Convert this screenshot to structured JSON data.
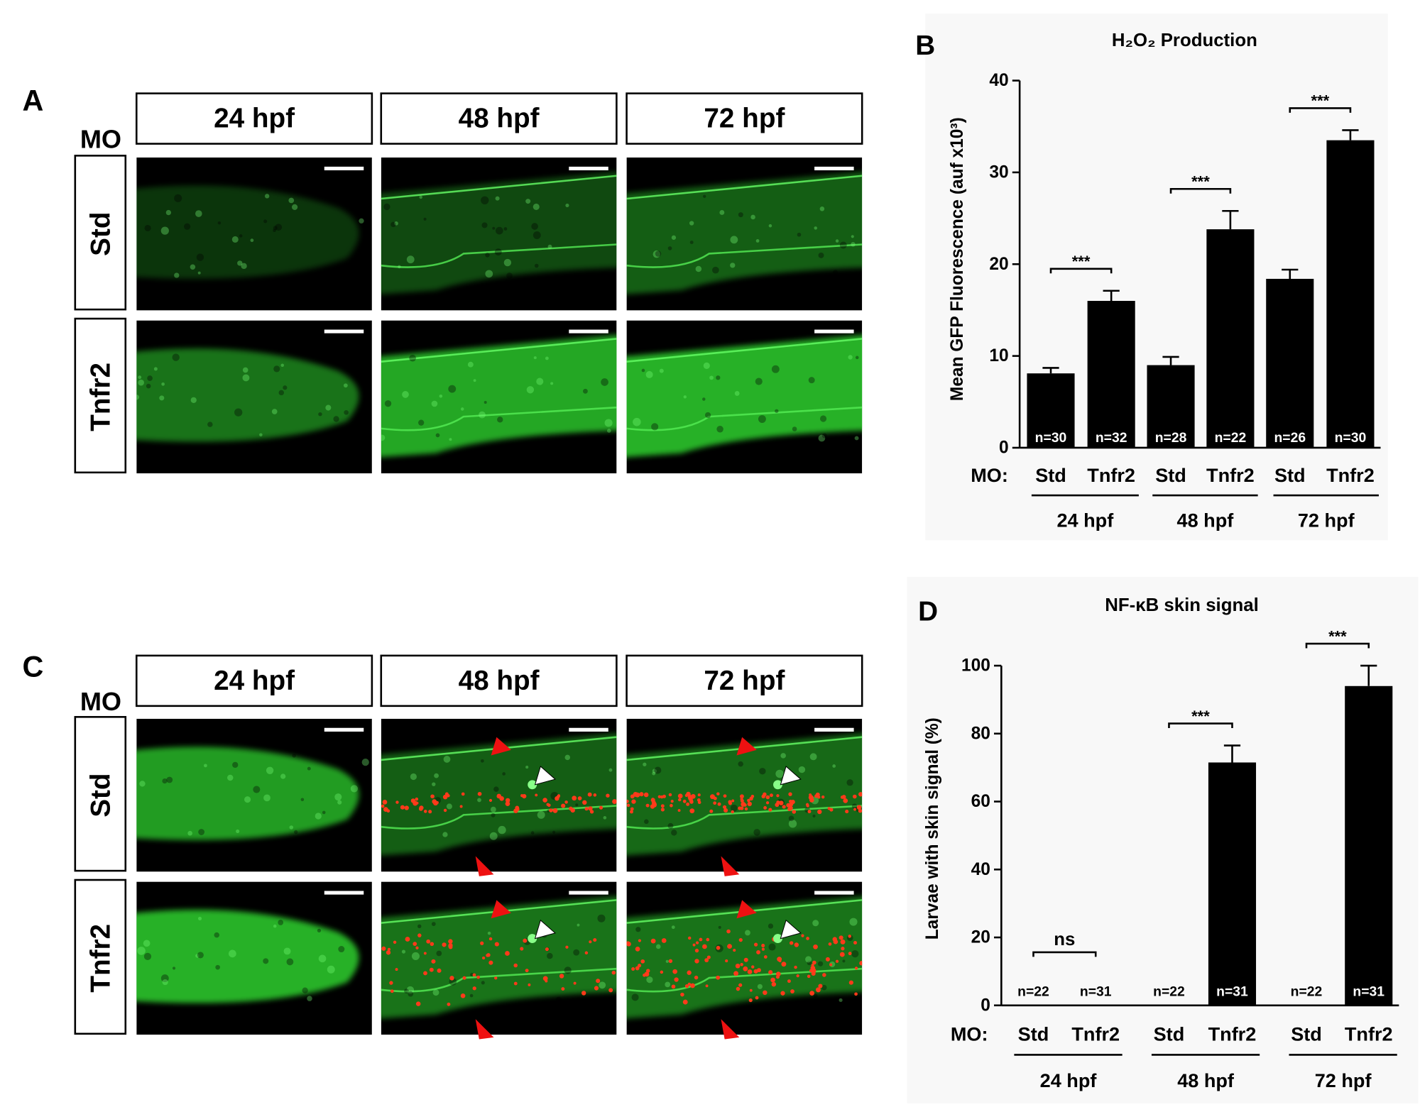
{
  "panels": [
    {
      "letter": "A",
      "mo_label": "MO",
      "columns": [
        "24 hpf",
        "48 hpf",
        "72 hpf"
      ],
      "rows": [
        "Std",
        "Tnfr2"
      ]
    },
    {
      "letter": "C",
      "mo_label": "MO",
      "columns": [
        "24 hpf",
        "48 hpf",
        "72 hpf"
      ],
      "rows": [
        "Std",
        "Tnfr2"
      ]
    }
  ],
  "chart_data": [
    {
      "type": "bar",
      "letter": "B",
      "title": "H₂O₂ Production",
      "y_label": "Mean GFP Fluorescence (auf x10³)",
      "x_prefix": "MO:",
      "categories": [
        "Std",
        "Tnfr2",
        "Std",
        "Tnfr2",
        "Std",
        "Tnfr2"
      ],
      "groups": [
        "24 hpf",
        "48 hpf",
        "72 hpf"
      ],
      "values": [
        8.1,
        16.0,
        9.0,
        23.8,
        18.4,
        33.5
      ],
      "errors": [
        0.6,
        1.1,
        0.9,
        2.0,
        1.0,
        1.1
      ],
      "n_labels": [
        "n=30",
        "n=32",
        "n=28",
        "n=22",
        "n=26",
        "n=30"
      ],
      "significance": [
        "***",
        "***",
        "***"
      ],
      "color": "#000000",
      "ylim": [
        0,
        40
      ],
      "yticks": [
        0,
        10,
        20,
        30,
        40
      ]
    },
    {
      "type": "bar",
      "letter": "D",
      "title": "NF-κB skin signal",
      "y_label": "Larvae with skin signal (%)",
      "x_prefix": "MO:",
      "categories": [
        "Std",
        "Tnfr2",
        "Std",
        "Tnfr2",
        "Std",
        "Tnfr2"
      ],
      "groups": [
        "24 hpf",
        "48 hpf",
        "72 hpf"
      ],
      "values": [
        0,
        0,
        0,
        71.5,
        0,
        94
      ],
      "errors": [
        0,
        0,
        0,
        5,
        0,
        6
      ],
      "n_labels": [
        "n=22",
        "n=31",
        "n=22",
        "n=31",
        "n=22",
        "n=31"
      ],
      "significance": [
        "ns",
        "***",
        "***"
      ],
      "color": "#000000",
      "ylim": [
        0,
        100
      ],
      "yticks": [
        0,
        20,
        40,
        60,
        80,
        100
      ]
    }
  ]
}
